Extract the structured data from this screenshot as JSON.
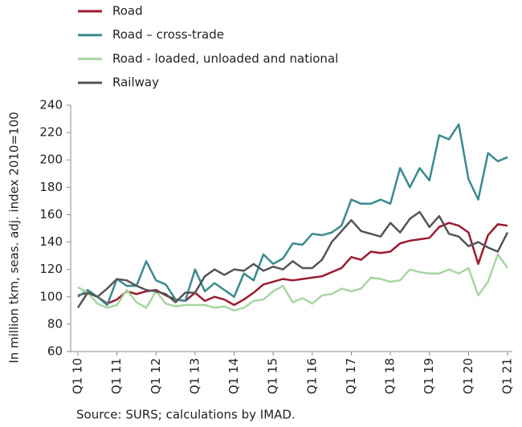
{
  "chart_data": {
    "type": "line",
    "y_label": "In million tkm, seas. adj. index 2010=100",
    "source": "Source: SURS; calculations by IMAD.",
    "categories": [
      "Q1 10",
      null,
      null,
      null,
      "Q1 11",
      null,
      null,
      null,
      "Q1 12",
      null,
      null,
      null,
      "Q1 13",
      null,
      null,
      null,
      "Q1 14",
      null,
      null,
      null,
      "Q1 15",
      null,
      null,
      null,
      "Q1 16",
      null,
      null,
      null,
      "Q1 17",
      null,
      null,
      null,
      "Q1 18",
      null,
      null,
      null,
      "Q1 19",
      null,
      null,
      null,
      "Q1 20",
      null,
      null,
      null,
      "Q1 21"
    ],
    "series": [
      {
        "name": "Road",
        "color": "#9b1b30",
        "values": [
          101,
          103,
          100,
          95,
          98,
          104,
          102,
          104,
          105,
          101,
          98,
          97,
          103,
          97,
          100,
          98,
          94,
          98,
          103,
          109,
          111,
          113,
          112,
          113,
          114,
          115,
          118,
          121,
          129,
          127,
          133,
          132,
          133,
          139,
          141,
          142,
          143,
          151,
          154,
          152,
          147,
          124,
          145,
          153,
          152
        ]
      },
      {
        "name": "Road – cross-trade",
        "color": "#3a8a8f",
        "values": [
          100,
          105,
          100,
          94,
          113,
          108,
          108,
          126,
          112,
          109,
          98,
          97,
          120,
          104,
          110,
          105,
          100,
          117,
          112,
          131,
          124,
          128,
          139,
          138,
          146,
          145,
          147,
          152,
          171,
          168,
          168,
          171,
          168,
          194,
          180,
          194,
          185,
          218,
          215,
          226,
          186,
          171,
          205,
          199,
          202
        ]
      },
      {
        "name": "Road - loaded, unloaded and national",
        "color": "#a8d5a2",
        "values": [
          107,
          103,
          95,
          92,
          94,
          105,
          96,
          92,
          104,
          95,
          93,
          94,
          94,
          94,
          92,
          93,
          90,
          92,
          97,
          98,
          104,
          108,
          96,
          99,
          95,
          101,
          102,
          106,
          104,
          106,
          114,
          113,
          111,
          112,
          120,
          118,
          117,
          117,
          120,
          117,
          121,
          101,
          111,
          131,
          121
        ]
      },
      {
        "name": "Railway",
        "color": "#555555",
        "values": [
          92,
          103,
          100,
          106,
          113,
          112,
          108,
          105,
          104,
          102,
          96,
          103,
          103,
          115,
          120,
          116,
          120,
          119,
          124,
          119,
          122,
          120,
          126,
          121,
          121,
          127,
          140,
          148,
          156,
          148,
          146,
          144,
          154,
          147,
          157,
          162,
          151,
          159,
          146,
          144,
          137,
          140,
          136,
          133,
          147
        ]
      }
    ],
    "ylim": [
      60,
      240
    ],
    "yticks": [
      60,
      80,
      100,
      120,
      140,
      160,
      180,
      200,
      220,
      240
    ]
  }
}
